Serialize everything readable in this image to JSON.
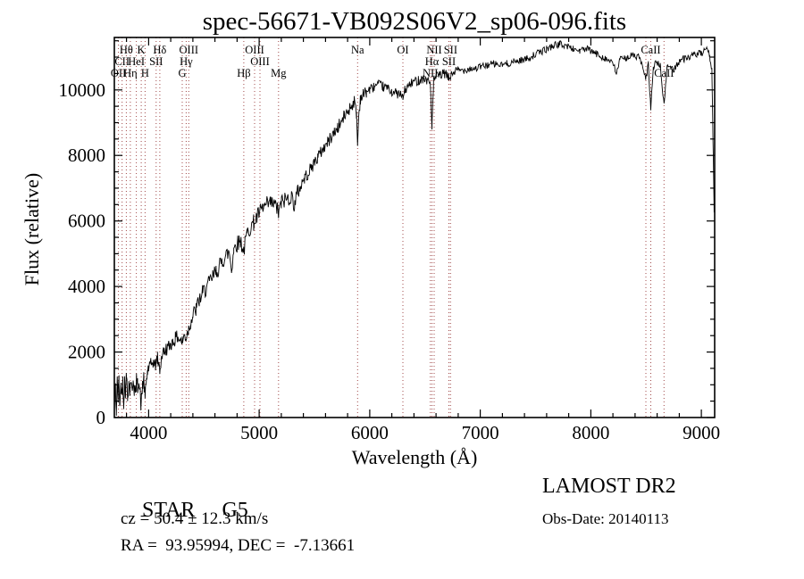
{
  "chart_data": {
    "type": "line",
    "title": "spec-56671-VB092S06V2_sp06-096.fits",
    "xlabel": "Wavelength (Å)",
    "ylabel": "Flux (relative)",
    "xlim": [
      3690,
      9120
    ],
    "ylim": [
      0,
      11600
    ],
    "x_major_ticks": [
      4000,
      5000,
      6000,
      7000,
      8000,
      9000
    ],
    "x_minor_step": 200,
    "y_major_ticks": [
      0,
      2000,
      4000,
      6000,
      8000,
      10000
    ],
    "y_minor_step": 500,
    "grid": false,
    "legend": "none",
    "line_color": "#000000",
    "marker_color": "#a04848",
    "series": [
      {
        "name": "flux",
        "points": [
          [
            3690,
            250
          ],
          [
            3700,
            950
          ],
          [
            3708,
            180
          ],
          [
            3716,
            1050
          ],
          [
            3724,
            600
          ],
          [
            3732,
            1150
          ],
          [
            3740,
            350
          ],
          [
            3750,
            1000
          ],
          [
            3758,
            700
          ],
          [
            3766,
            1200
          ],
          [
            3774,
            500
          ],
          [
            3782,
            1100
          ],
          [
            3790,
            850
          ],
          [
            3800,
            1250
          ],
          [
            3810,
            600
          ],
          [
            3820,
            1150
          ],
          [
            3830,
            800
          ],
          [
            3840,
            1200
          ],
          [
            3850,
            700
          ],
          [
            3860,
            1250
          ],
          [
            3870,
            900
          ],
          [
            3880,
            650
          ],
          [
            3890,
            1100
          ],
          [
            3900,
            950
          ],
          [
            3910,
            1200
          ],
          [
            3920,
            800
          ],
          [
            3933,
            350
          ],
          [
            3945,
            1000
          ],
          [
            3956,
            1200
          ],
          [
            3968,
            550
          ],
          [
            3980,
            1150
          ],
          [
            3990,
            1400
          ],
          [
            4000,
            1500
          ],
          [
            4020,
            1600
          ],
          [
            4040,
            1700
          ],
          [
            4060,
            1600
          ],
          [
            4080,
            1800
          ],
          [
            4101,
            1450
          ],
          [
            4120,
            1900
          ],
          [
            4140,
            2000
          ],
          [
            4160,
            2100
          ],
          [
            4180,
            2150
          ],
          [
            4200,
            2250
          ],
          [
            4220,
            2300
          ],
          [
            4240,
            2400
          ],
          [
            4260,
            2450
          ],
          [
            4280,
            2400
          ],
          [
            4304,
            2300
          ],
          [
            4320,
            2500
          ],
          [
            4340,
            2450
          ],
          [
            4360,
            2700
          ],
          [
            4380,
            2900
          ],
          [
            4400,
            3100
          ],
          [
            4430,
            3300
          ],
          [
            4460,
            3600
          ],
          [
            4490,
            3800
          ],
          [
            4520,
            3950
          ],
          [
            4550,
            4100
          ],
          [
            4580,
            4300
          ],
          [
            4610,
            4450
          ],
          [
            4640,
            4600
          ],
          [
            4670,
            4800
          ],
          [
            4700,
            4950
          ],
          [
            4730,
            5050
          ],
          [
            4750,
            4500
          ],
          [
            4770,
            5150
          ],
          [
            4800,
            5300
          ],
          [
            4830,
            5400
          ],
          [
            4861,
            5100
          ],
          [
            4890,
            5600
          ],
          [
            4920,
            5800
          ],
          [
            4950,
            5950
          ],
          [
            4980,
            6100
          ],
          [
            5010,
            6300
          ],
          [
            5040,
            6400
          ],
          [
            5070,
            6500
          ],
          [
            5100,
            6550
          ],
          [
            5130,
            6500
          ],
          [
            5160,
            6400
          ],
          [
            5175,
            6200
          ],
          [
            5200,
            6550
          ],
          [
            5230,
            6650
          ],
          [
            5260,
            6700
          ],
          [
            5290,
            6750
          ],
          [
            5320,
            6500
          ],
          [
            5350,
            6900
          ],
          [
            5380,
            7100
          ],
          [
            5410,
            7300
          ],
          [
            5440,
            7450
          ],
          [
            5470,
            7600
          ],
          [
            5500,
            7800
          ],
          [
            5530,
            7950
          ],
          [
            5560,
            8100
          ],
          [
            5590,
            8250
          ],
          [
            5620,
            8400
          ],
          [
            5650,
            8550
          ],
          [
            5680,
            8700
          ],
          [
            5710,
            8850
          ],
          [
            5740,
            9000
          ],
          [
            5770,
            9200
          ],
          [
            5800,
            9350
          ],
          [
            5830,
            9500
          ],
          [
            5860,
            9650
          ],
          [
            5880,
            9300
          ],
          [
            5890,
            8300
          ],
          [
            5900,
            9200
          ],
          [
            5915,
            9750
          ],
          [
            5940,
            9850
          ],
          [
            5970,
            9950
          ],
          [
            6000,
            10000
          ],
          [
            6040,
            10100
          ],
          [
            6080,
            10150
          ],
          [
            6120,
            10100
          ],
          [
            6160,
            10050
          ],
          [
            6200,
            9950
          ],
          [
            6240,
            9900
          ],
          [
            6280,
            9850
          ],
          [
            6300,
            9750
          ],
          [
            6320,
            10000
          ],
          [
            6360,
            10150
          ],
          [
            6400,
            10250
          ],
          [
            6440,
            10300
          ],
          [
            6480,
            10350
          ],
          [
            6520,
            10300
          ],
          [
            6548,
            10200
          ],
          [
            6563,
            8900
          ],
          [
            6578,
            10250
          ],
          [
            6600,
            10400
          ],
          [
            6640,
            10450
          ],
          [
            6680,
            10500
          ],
          [
            6716,
            10350
          ],
          [
            6731,
            10400
          ],
          [
            6760,
            10550
          ],
          [
            6800,
            10600
          ],
          [
            6850,
            10600
          ],
          [
            6900,
            10650
          ],
          [
            6950,
            10650
          ],
          [
            7000,
            10700
          ],
          [
            7060,
            10750
          ],
          [
            7120,
            10800
          ],
          [
            7180,
            10750
          ],
          [
            7240,
            10800
          ],
          [
            7300,
            10850
          ],
          [
            7360,
            10900
          ],
          [
            7420,
            10950
          ],
          [
            7480,
            11050
          ],
          [
            7540,
            11150
          ],
          [
            7600,
            11250
          ],
          [
            7660,
            11350
          ],
          [
            7720,
            11400
          ],
          [
            7780,
            11350
          ],
          [
            7840,
            11250
          ],
          [
            7900,
            11200
          ],
          [
            7960,
            11250
          ],
          [
            8020,
            11150
          ],
          [
            8080,
            11050
          ],
          [
            8140,
            10950
          ],
          [
            8200,
            10800
          ],
          [
            8230,
            10500
          ],
          [
            8260,
            10900
          ],
          [
            8320,
            11000
          ],
          [
            8380,
            11050
          ],
          [
            8440,
            11000
          ],
          [
            8498,
            10300
          ],
          [
            8520,
            10800
          ],
          [
            8542,
            9400
          ],
          [
            8565,
            10700
          ],
          [
            8600,
            10850
          ],
          [
            8630,
            10700
          ],
          [
            8662,
            9500
          ],
          [
            8690,
            10750
          ],
          [
            8720,
            10700
          ],
          [
            8750,
            10600
          ],
          [
            8780,
            10800
          ],
          [
            8810,
            10900
          ],
          [
            8840,
            10950
          ],
          [
            8870,
            11000
          ],
          [
            8900,
            11000
          ],
          [
            8930,
            11050
          ],
          [
            8960,
            11100
          ],
          [
            8990,
            11100
          ],
          [
            9020,
            11150
          ],
          [
            9050,
            11200
          ],
          [
            9075,
            11050
          ],
          [
            9095,
            10600
          ],
          [
            9105,
            8500
          ],
          [
            9115,
            6400
          ]
        ]
      }
    ],
    "noise": {
      "seed": 42,
      "step": 6,
      "breaks": [
        4000,
        4400,
        5400,
        6000,
        6800
      ],
      "amps": [
        280,
        220,
        260,
        200,
        150,
        110
      ]
    },
    "line_markers": [
      {
        "wavelength": 3727,
        "label": "OII",
        "row": 3
      },
      {
        "wavelength": 3760,
        "label": "CII",
        "row": 2
      },
      {
        "wavelength": 3798,
        "label": "Hθ",
        "row": 1
      },
      {
        "wavelength": 3835,
        "label": "Hη",
        "row": 3
      },
      {
        "wavelength": 3889,
        "label": "HeI",
        "row": 2
      },
      {
        "wavelength": 3933,
        "label": "K",
        "row": 1
      },
      {
        "wavelength": 3968,
        "label": "H",
        "row": 3
      },
      {
        "wavelength": 4068,
        "label": "SII",
        "row": 2
      },
      {
        "wavelength": 4101,
        "label": "Hδ",
        "row": 1
      },
      {
        "wavelength": 4304,
        "label": "G",
        "row": 3
      },
      {
        "wavelength": 4340,
        "label": "Hγ",
        "row": 2
      },
      {
        "wavelength": 4363,
        "label": "OIII",
        "row": 1
      },
      {
        "wavelength": 4861,
        "label": "Hβ",
        "row": 3
      },
      {
        "wavelength": 4959,
        "label": "OIII",
        "row": 1
      },
      {
        "wavelength": 5007,
        "label": "OIII",
        "row": 2
      },
      {
        "wavelength": 5175,
        "label": "Mg",
        "row": 3
      },
      {
        "wavelength": 5890,
        "label": "Na",
        "row": 1
      },
      {
        "wavelength": 6300,
        "label": "OI",
        "row": 1
      },
      {
        "wavelength": 6548,
        "label": "NII",
        "row": 3
      },
      {
        "wavelength": 6563,
        "label": "Hα",
        "row": 2
      },
      {
        "wavelength": 6583,
        "label": "NII",
        "row": 1
      },
      {
        "wavelength": 6716,
        "label": "SII",
        "row": 2
      },
      {
        "wavelength": 6731,
        "label": "SII",
        "row": 1
      },
      {
        "wavelength": 8498,
        "label": "",
        "row": 2
      },
      {
        "wavelength": 8542,
        "label": "CaII",
        "row": 1
      },
      {
        "wavelength": 8662,
        "label": "CaII",
        "row": 3
      }
    ]
  },
  "footer": {
    "left": {
      "class": "STAR",
      "subclass": "G5",
      "cz": "cz = 50.4 ± 12.3 km/s",
      "radec": "RA =  93.95994, DEC =  -7.13661"
    },
    "right": {
      "survey": "LAMOST DR2",
      "obs_date": "Obs-Date: 20140113"
    }
  }
}
